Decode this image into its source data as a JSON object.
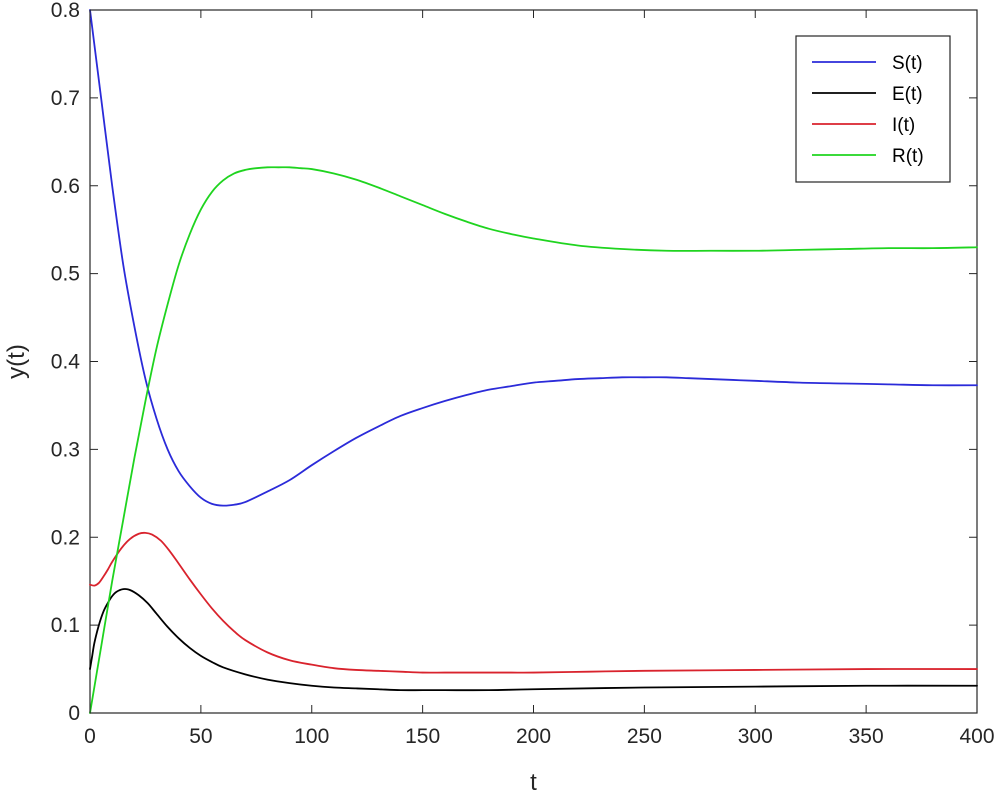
{
  "chart_data": {
    "type": "line",
    "title": "",
    "xlabel": "t",
    "ylabel": "y(t)",
    "xlim": [
      0,
      400
    ],
    "ylim": [
      0,
      0.8
    ],
    "xticks": [
      0,
      50,
      100,
      150,
      200,
      250,
      300,
      350,
      400
    ],
    "yticks": [
      0,
      0.1,
      0.2,
      0.3,
      0.4,
      0.5,
      0.6,
      0.7,
      0.8
    ],
    "grid": false,
    "legend_position": "top-right",
    "series": [
      {
        "name": "S(t)",
        "color": "#2b2bd9",
        "x": [
          0,
          5,
          10,
          15,
          20,
          25,
          30,
          35,
          40,
          45,
          50,
          55,
          60,
          65,
          70,
          80,
          90,
          100,
          110,
          120,
          130,
          140,
          150,
          160,
          170,
          180,
          190,
          200,
          210,
          220,
          230,
          240,
          250,
          260,
          270,
          280,
          290,
          300,
          320,
          340,
          360,
          380,
          400
        ],
        "y": [
          0.8,
          0.7,
          0.6,
          0.51,
          0.44,
          0.38,
          0.335,
          0.3,
          0.275,
          0.258,
          0.245,
          0.238,
          0.236,
          0.237,
          0.24,
          0.252,
          0.265,
          0.282,
          0.298,
          0.313,
          0.326,
          0.338,
          0.347,
          0.355,
          0.362,
          0.368,
          0.372,
          0.376,
          0.378,
          0.38,
          0.381,
          0.382,
          0.382,
          0.382,
          0.381,
          0.38,
          0.379,
          0.378,
          0.376,
          0.375,
          0.374,
          0.373,
          0.373
        ]
      },
      {
        "name": "E(t)",
        "color": "#000000",
        "x": [
          0,
          1,
          2,
          4,
          6,
          8,
          10,
          12,
          15,
          18,
          22,
          26,
          30,
          35,
          40,
          45,
          50,
          55,
          60,
          70,
          80,
          90,
          100,
          110,
          120,
          130,
          140,
          150,
          160,
          180,
          200,
          250,
          300,
          350,
          400
        ],
        "y": [
          0.05,
          0.065,
          0.08,
          0.1,
          0.115,
          0.125,
          0.133,
          0.138,
          0.141,
          0.14,
          0.134,
          0.125,
          0.113,
          0.098,
          0.085,
          0.074,
          0.065,
          0.058,
          0.052,
          0.044,
          0.038,
          0.034,
          0.031,
          0.029,
          0.028,
          0.027,
          0.026,
          0.026,
          0.026,
          0.026,
          0.027,
          0.029,
          0.03,
          0.031,
          0.031
        ]
      },
      {
        "name": "I(t)",
        "color": "#d9232d",
        "x": [
          0,
          2,
          4,
          6,
          8,
          10,
          14,
          18,
          22,
          25,
          28,
          32,
          36,
          40,
          45,
          50,
          55,
          60,
          65,
          70,
          80,
          90,
          100,
          110,
          120,
          130,
          140,
          150,
          160,
          170,
          180,
          190,
          200,
          225,
          250,
          300,
          350,
          400
        ],
        "y": [
          0.146,
          0.145,
          0.148,
          0.155,
          0.163,
          0.172,
          0.187,
          0.198,
          0.204,
          0.205,
          0.203,
          0.196,
          0.184,
          0.17,
          0.152,
          0.135,
          0.119,
          0.105,
          0.093,
          0.083,
          0.069,
          0.06,
          0.055,
          0.051,
          0.049,
          0.048,
          0.047,
          0.046,
          0.046,
          0.046,
          0.046,
          0.046,
          0.046,
          0.047,
          0.048,
          0.049,
          0.05,
          0.05
        ]
      },
      {
        "name": "R(t)",
        "color": "#1fd41f",
        "x": [
          0,
          5,
          10,
          15,
          20,
          25,
          30,
          35,
          40,
          45,
          50,
          55,
          60,
          65,
          70,
          75,
          80,
          85,
          90,
          95,
          100,
          110,
          120,
          130,
          140,
          150,
          160,
          170,
          180,
          190,
          200,
          220,
          240,
          260,
          280,
          300,
          320,
          340,
          360,
          380,
          400
        ],
        "y": [
          0.0,
          0.075,
          0.15,
          0.22,
          0.29,
          0.355,
          0.415,
          0.465,
          0.51,
          0.545,
          0.573,
          0.593,
          0.606,
          0.614,
          0.618,
          0.62,
          0.621,
          0.621,
          0.621,
          0.62,
          0.619,
          0.614,
          0.607,
          0.598,
          0.588,
          0.578,
          0.568,
          0.559,
          0.551,
          0.545,
          0.54,
          0.532,
          0.528,
          0.526,
          0.526,
          0.526,
          0.527,
          0.528,
          0.529,
          0.529,
          0.53
        ]
      }
    ]
  }
}
